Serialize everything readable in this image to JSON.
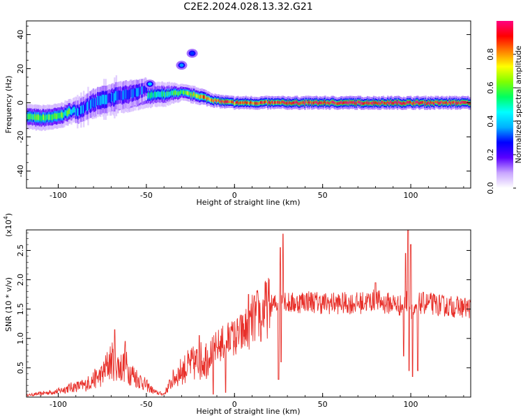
{
  "title": "C2E2.2024.028.13.32.G21",
  "chart_data": [
    {
      "type": "heatmap",
      "xlabel": "Height of straight line (km)",
      "ylabel": "Frequency (Hz)",
      "xlim": [
        -118,
        134
      ],
      "ylim": [
        -50,
        48
      ],
      "xticks": [
        -100,
        -50,
        0,
        50,
        100
      ],
      "yticks": [
        -40,
        -20,
        0,
        20,
        40
      ],
      "colorbar": {
        "label": "Normalized spectral amplitude",
        "range": [
          0,
          1
        ],
        "ticks": [
          "0.0",
          "0.2",
          "0.4",
          "0.6",
          "0.8"
        ],
        "tick_values": [
          0,
          0.2,
          0.4,
          0.6,
          0.8
        ],
        "colors": [
          "#ffffff",
          "#c9a6ff",
          "#5a00ff",
          "#0000ff",
          "#00b0ff",
          "#00ffff",
          "#00ff60",
          "#80ff00",
          "#ffff00",
          "#ff8000",
          "#ff0000",
          "#ff0080"
        ]
      },
      "bands": [
        {
          "name": "",
          "points": [
            [
              -118,
              -8
            ],
            [
              -110,
              -9
            ],
            [
              -100,
              -8
            ],
            [
              -90,
              -4
            ],
            [
              -80,
              -2
            ],
            [
              -70,
              0
            ],
            [
              -60,
              2
            ],
            [
              -50,
              4
            ],
            [
              -40,
              5
            ],
            [
              -30,
              6
            ],
            [
              -20,
              4
            ],
            [
              -10,
              1
            ],
            [
              0,
              0
            ],
            [
              20,
              0
            ],
            [
              60,
              0
            ],
            [
              100,
              0
            ],
            [
              134,
              0
            ]
          ],
          "halfwidth": [
            3,
            3,
            3,
            3,
            3,
            3,
            3,
            3,
            3,
            2,
            2,
            1.5,
            1.5,
            1.5,
            1.5,
            1.5,
            1.5
          ],
          "intensity": [
            0.55,
            0.6,
            0.6,
            0.5,
            0.45,
            0.45,
            0.5,
            0.45,
            0.5,
            0.6,
            0.75,
            0.9,
            0.85,
            0.9,
            0.95,
            0.95,
            0.92
          ]
        },
        {
          "name": "",
          "points": [
            [
              -90,
              -6
            ],
            [
              -80,
              0
            ],
            [
              -70,
              3
            ],
            [
              -60,
              5
            ],
            [
              -50,
              8
            ]
          ],
          "halfwidth": [
            4,
            5,
            5,
            5,
            4
          ],
          "intensity": [
            0.35,
            0.3,
            0.35,
            0.3,
            0.3
          ]
        }
      ],
      "blobs": [
        [
          -48,
          11,
          0.4
        ],
        [
          -30,
          22,
          0.35
        ],
        [
          -24,
          29,
          0.3
        ]
      ]
    },
    {
      "type": "line",
      "xlabel": "Height of straight line (km)",
      "ylabel": "SNR (10 * v/v)",
      "yscale_label": "(x10",
      "yscale_exp": "4",
      "xlim": [
        -118,
        134
      ],
      "ylim": [
        0,
        2.85
      ],
      "xticks": [
        -100,
        -50,
        0,
        50,
        100
      ],
      "yticks": [
        0.5,
        1.0,
        1.5,
        2.0,
        2.5
      ],
      "color": "#e8302a",
      "x": [
        -118,
        -110,
        -100,
        -95,
        -90,
        -85,
        -80,
        -75,
        -72,
        -70,
        -68,
        -65,
        -62,
        -60,
        -55,
        -50,
        -45,
        -40,
        -35,
        -30,
        -25,
        -20,
        -15,
        -10,
        -5,
        0,
        5,
        10,
        15,
        20,
        25,
        27,
        30,
        35,
        40,
        50,
        60,
        70,
        80,
        85,
        90,
        95,
        98,
        100,
        102,
        105,
        110,
        120,
        134
      ],
      "values": [
        0.03,
        0.06,
        0.1,
        0.15,
        0.18,
        0.2,
        0.3,
        0.38,
        0.55,
        0.62,
        0.6,
        0.5,
        0.55,
        0.45,
        0.32,
        0.2,
        0.08,
        0.05,
        0.3,
        0.45,
        0.55,
        0.6,
        0.7,
        0.85,
        0.95,
        1.0,
        1.1,
        1.3,
        1.45,
        1.55,
        1.6,
        1.75,
        1.6,
        1.6,
        1.65,
        1.6,
        1.6,
        1.6,
        1.65,
        1.6,
        1.6,
        1.55,
        1.65,
        1.55,
        1.4,
        1.6,
        1.6,
        1.55,
        1.52
      ],
      "spikes": [
        [
          -68,
          1.15
        ],
        [
          -62,
          0.95
        ],
        [
          -20,
          1.05
        ],
        [
          -10,
          0.85
        ],
        [
          -2,
          1.2
        ],
        [
          8,
          1.75
        ],
        [
          18,
          1.95
        ],
        [
          26,
          2.55
        ],
        [
          27.5,
          2.78
        ],
        [
          80,
          1.95
        ],
        [
          97,
          2.45
        ],
        [
          98.5,
          2.9
        ],
        [
          100,
          2.6
        ],
        [
          104,
          2.8
        ]
      ],
      "dips": [
        [
          -12,
          0.05
        ],
        [
          -5,
          0.08
        ],
        [
          15,
          0.95
        ],
        [
          25,
          0.3
        ],
        [
          26.5,
          0.6
        ],
        [
          96,
          0.7
        ],
        [
          99,
          0.45
        ],
        [
          101,
          0.35
        ],
        [
          104,
          0.45
        ]
      ]
    }
  ]
}
